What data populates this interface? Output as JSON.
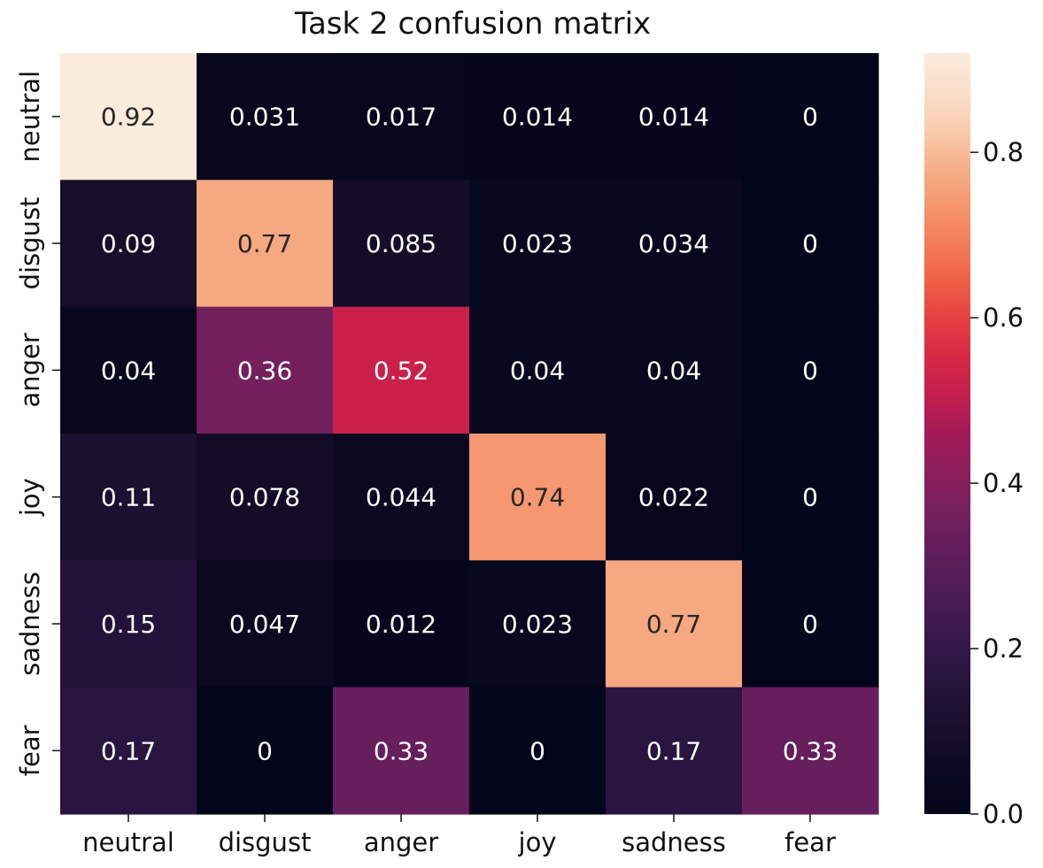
{
  "chart_data": {
    "type": "heatmap",
    "title": "Task 2 confusion matrix",
    "xlabel": "",
    "ylabel": "",
    "x_categories": [
      "neutral",
      "disgust",
      "anger",
      "joy",
      "sadness",
      "fear"
    ],
    "y_categories": [
      "neutral",
      "disgust",
      "anger",
      "joy",
      "sadness",
      "fear"
    ],
    "values": [
      [
        0.92,
        0.031,
        0.017,
        0.014,
        0.014,
        0
      ],
      [
        0.09,
        0.77,
        0.085,
        0.023,
        0.034,
        0
      ],
      [
        0.04,
        0.36,
        0.52,
        0.04,
        0.04,
        0
      ],
      [
        0.11,
        0.078,
        0.044,
        0.74,
        0.022,
        0
      ],
      [
        0.15,
        0.047,
        0.012,
        0.023,
        0.77,
        0
      ],
      [
        0.17,
        0,
        0.33,
        0,
        0.17,
        0.33
      ]
    ],
    "value_labels": [
      [
        "0.92",
        "0.031",
        "0.017",
        "0.014",
        "0.014",
        "0"
      ],
      [
        "0.09",
        "0.77",
        "0.085",
        "0.023",
        "0.034",
        "0"
      ],
      [
        "0.04",
        "0.36",
        "0.52",
        "0.04",
        "0.04",
        "0"
      ],
      [
        "0.11",
        "0.078",
        "0.044",
        "0.74",
        "0.022",
        "0"
      ],
      [
        "0.15",
        "0.047",
        "0.012",
        "0.023",
        "0.77",
        "0"
      ],
      [
        "0.17",
        "0",
        "0.33",
        "0",
        "0.17",
        "0.33"
      ]
    ],
    "colorbar": {
      "range": [
        0,
        0.92
      ],
      "ticks": [
        0.0,
        0.2,
        0.4,
        0.6,
        0.8
      ],
      "tick_labels": [
        "0.0",
        "0.2",
        "0.4",
        "0.6",
        "0.8"
      ],
      "colormap": "rocket"
    },
    "grid": false,
    "legend": "colorbar-right"
  }
}
